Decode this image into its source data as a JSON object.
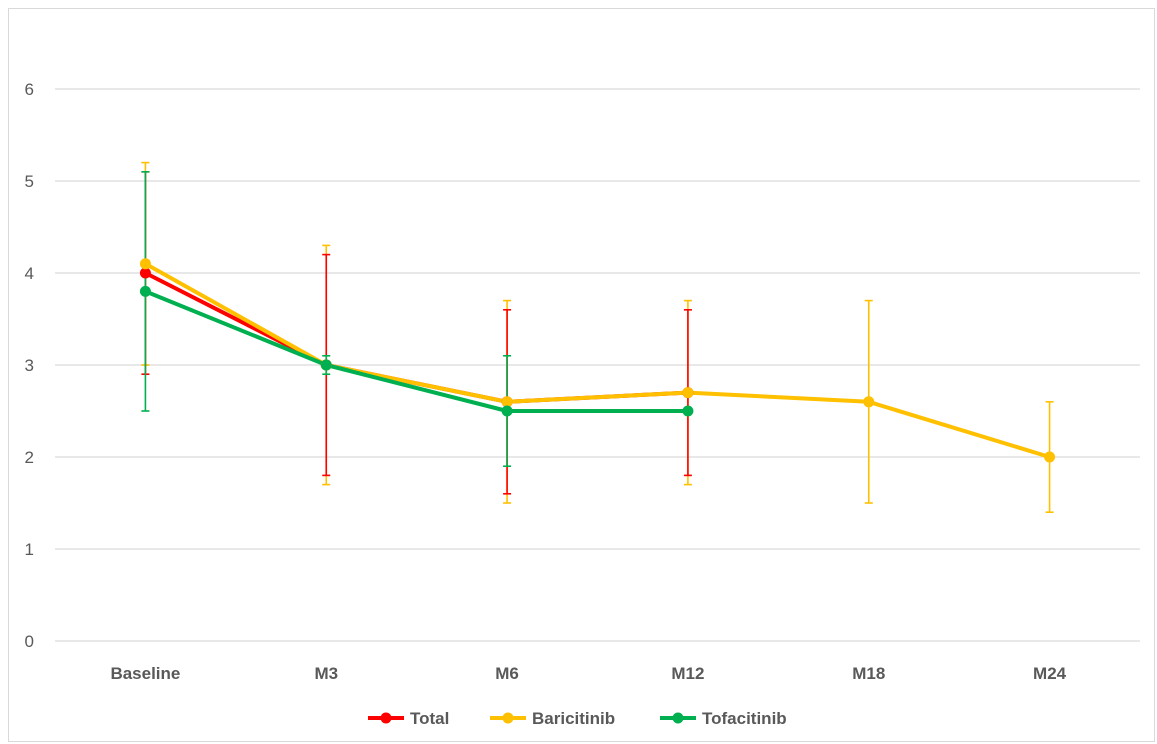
{
  "chart_data": {
    "type": "line",
    "title": "",
    "xlabel": "",
    "ylabel": "",
    "categories": [
      "Baseline",
      "M3",
      "M6",
      "M12",
      "M18",
      "M24"
    ],
    "ylim": [
      0,
      6
    ],
    "yticks": [
      0,
      1,
      2,
      3,
      4,
      5,
      6
    ],
    "grid": "horizontal",
    "legend_position": "bottom",
    "series": [
      {
        "name": "Total",
        "color": "#ff0000",
        "values": [
          4.0,
          3.0,
          2.6,
          2.7,
          null,
          null
        ],
        "err_low": [
          2.9,
          1.8,
          1.6,
          1.8,
          null,
          null
        ],
        "err_high": [
          5.1,
          4.2,
          3.6,
          3.6,
          null,
          null
        ]
      },
      {
        "name": "Baricitinib",
        "color": "#ffc000",
        "values": [
          4.1,
          3.0,
          2.6,
          2.7,
          2.6,
          2.0
        ],
        "err_low": [
          3.0,
          1.7,
          1.5,
          1.7,
          1.5,
          1.4
        ],
        "err_high": [
          5.2,
          4.3,
          3.7,
          3.7,
          3.7,
          2.6
        ]
      },
      {
        "name": "Tofacitinib",
        "color": "#00b050",
        "values": [
          3.8,
          3.0,
          2.5,
          2.5,
          null,
          null
        ],
        "err_low": [
          2.5,
          2.9,
          1.9,
          null,
          null,
          null
        ],
        "err_high": [
          5.1,
          3.1,
          3.1,
          null,
          null,
          null
        ]
      }
    ]
  }
}
